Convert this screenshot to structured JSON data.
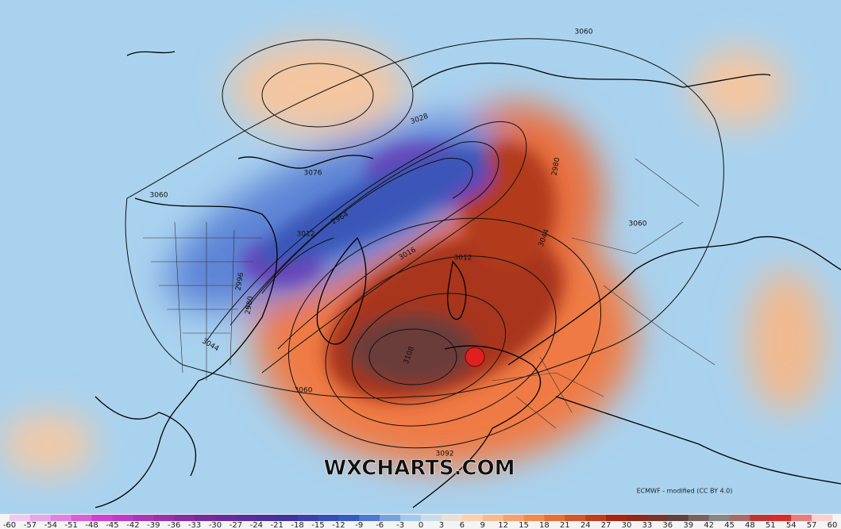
{
  "map": {
    "watermark": "WXCHARTS.COM",
    "credit": "ECMWF - modified (CC BY 4.0)",
    "contour_labels": [
      "3060",
      "3028",
      "3076",
      "3060",
      "2964",
      "3012",
      "2996",
      "2980",
      "2980",
      "3044",
      "3060",
      "3016",
      "3012",
      "3044",
      "3108",
      "3060",
      "3092"
    ],
    "colorbar_labels": [
      -60,
      -57,
      -54,
      -51,
      -48,
      -45,
      -42,
      -39,
      -36,
      -33,
      -30,
      -27,
      -24,
      -21,
      -18,
      -15,
      -12,
      -9,
      -6,
      -3,
      0,
      3,
      6,
      9,
      12,
      15,
      18,
      21,
      24,
      27,
      30,
      33,
      36,
      39,
      42,
      45,
      48,
      51,
      54,
      57,
      60
    ]
  }
}
